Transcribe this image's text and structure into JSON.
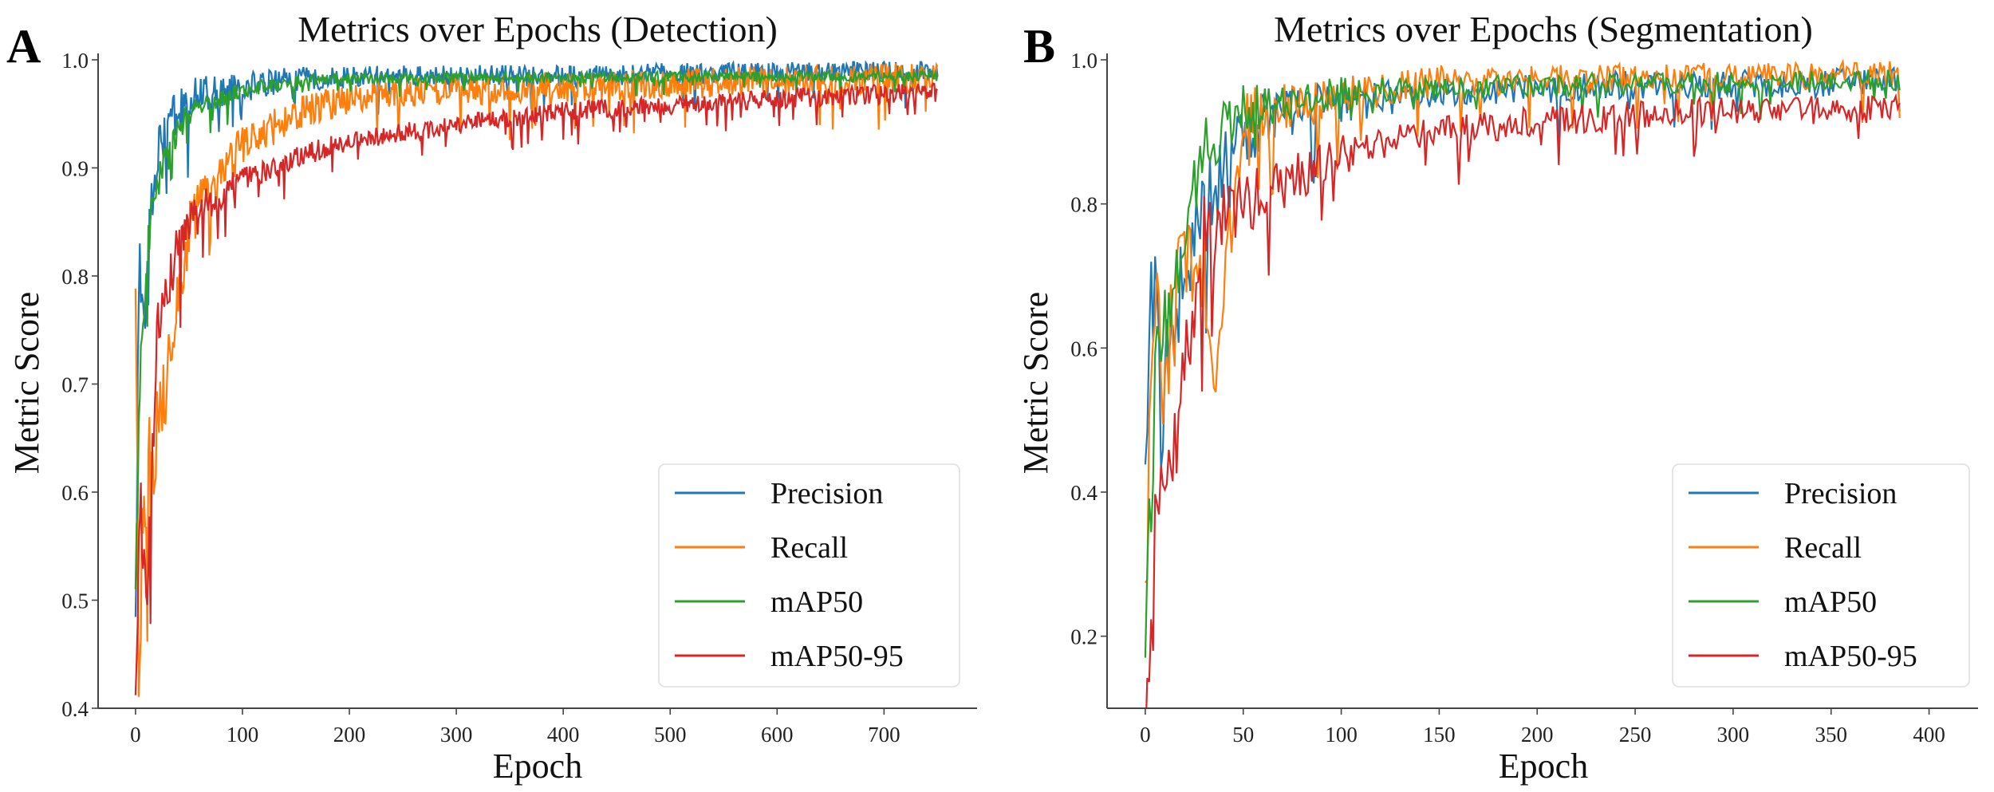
{
  "chart_data": [
    {
      "panel_label": "A",
      "type": "line",
      "title": "Metrics over Epochs (Detection)",
      "xlabel": "Epoch",
      "ylabel": "Metric Score",
      "xlim": [
        -35,
        787
      ],
      "ylim": [
        0.4,
        1.0
      ],
      "xticks": [
        0,
        100,
        200,
        300,
        400,
        500,
        600,
        700
      ],
      "xtick_labels": [
        "0",
        "100",
        "200",
        "300",
        "400",
        "500",
        "600",
        "700"
      ],
      "yticks": [
        0.4,
        0.5,
        0.6,
        0.7,
        0.8,
        0.9,
        1.0
      ],
      "ytick_labels": [
        "0.4",
        "0.5",
        "0.6",
        "0.7",
        "0.8",
        "0.9",
        "1.0"
      ],
      "grid": false,
      "legend_position": "lower-right",
      "x_max_epoch": 750,
      "series": [
        {
          "name": "Precision",
          "color": "#1f77b4",
          "noise": 0.01,
          "points": [
            [
              0,
              0.45
            ],
            [
              3,
              0.81
            ],
            [
              8,
              0.72
            ],
            [
              15,
              0.88
            ],
            [
              25,
              0.92
            ],
            [
              40,
              0.95
            ],
            [
              60,
              0.965
            ],
            [
              100,
              0.975
            ],
            [
              150,
              0.982
            ],
            [
              200,
              0.984
            ],
            [
              300,
              0.985
            ],
            [
              400,
              0.985
            ],
            [
              500,
              0.987
            ],
            [
              600,
              0.988
            ],
            [
              750,
              0.99
            ]
          ]
        },
        {
          "name": "Recall",
          "color": "#ff7f0e",
          "noise": 0.014,
          "points": [
            [
              0,
              0.75
            ],
            [
              3,
              0.45
            ],
            [
              8,
              0.6
            ],
            [
              15,
              0.62
            ],
            [
              30,
              0.72
            ],
            [
              50,
              0.85
            ],
            [
              100,
              0.92
            ],
            [
              150,
              0.95
            ],
            [
              200,
              0.965
            ],
            [
              300,
              0.972
            ],
            [
              500,
              0.978
            ],
            [
              750,
              0.984
            ]
          ]
        },
        {
          "name": "mAP50",
          "color": "#2ca02c",
          "noise": 0.005,
          "points": [
            [
              0,
              0.5
            ],
            [
              5,
              0.75
            ],
            [
              15,
              0.86
            ],
            [
              30,
              0.92
            ],
            [
              50,
              0.95
            ],
            [
              100,
              0.972
            ],
            [
              150,
              0.98
            ],
            [
              200,
              0.983
            ],
            [
              750,
              0.985
            ]
          ]
        },
        {
          "name": "mAP50-95",
          "color": "#d62728",
          "noise": 0.009,
          "points": [
            [
              0,
              0.4
            ],
            [
              5,
              0.6
            ],
            [
              10,
              0.47
            ],
            [
              20,
              0.75
            ],
            [
              40,
              0.83
            ],
            [
              60,
              0.86
            ],
            [
              100,
              0.89
            ],
            [
              150,
              0.91
            ],
            [
              200,
              0.925
            ],
            [
              300,
              0.94
            ],
            [
              400,
              0.952
            ],
            [
              500,
              0.958
            ],
            [
              600,
              0.964
            ],
            [
              750,
              0.97
            ]
          ]
        }
      ]
    },
    {
      "panel_label": "B",
      "type": "line",
      "title": "Metrics over Epochs (Segmentation)",
      "xlabel": "Epoch",
      "ylabel": "Metric Score",
      "xlim": [
        -19.5,
        425
      ],
      "ylim": [
        0.1,
        1.0
      ],
      "xticks": [
        0,
        50,
        100,
        150,
        200,
        250,
        300,
        350,
        400
      ],
      "xtick_labels": [
        "0",
        "50",
        "100",
        "150",
        "200",
        "250",
        "300",
        "350",
        "400"
      ],
      "yticks": [
        0.2,
        0.4,
        0.6,
        0.8,
        1.0
      ],
      "ytick_labels": [
        "0.2",
        "0.4",
        "0.6",
        "0.8",
        "1.0"
      ],
      "grid": false,
      "legend_position": "lower-right",
      "x_max_epoch": 385,
      "series": [
        {
          "name": "Precision",
          "color": "#1f77b4",
          "noise": 0.02,
          "points": [
            [
              0,
              0.45
            ],
            [
              3,
              0.74
            ],
            [
              8,
              0.5
            ],
            [
              15,
              0.65
            ],
            [
              25,
              0.75
            ],
            [
              35,
              0.82
            ],
            [
              50,
              0.9
            ],
            [
              75,
              0.93
            ],
            [
              100,
              0.94
            ],
            [
              150,
              0.955
            ],
            [
              200,
              0.96
            ],
            [
              250,
              0.965
            ],
            [
              300,
              0.965
            ],
            [
              385,
              0.97
            ]
          ]
        },
        {
          "name": "Recall",
          "color": "#ff7f0e",
          "noise": 0.02,
          "points": [
            [
              0,
              0.3
            ],
            [
              5,
              0.65
            ],
            [
              10,
              0.55
            ],
            [
              20,
              0.75
            ],
            [
              30,
              0.7
            ],
            [
              35,
              0.55
            ],
            [
              50,
              0.92
            ],
            [
              100,
              0.95
            ],
            [
              150,
              0.97
            ],
            [
              385,
              0.98
            ]
          ]
        },
        {
          "name": "mAP50",
          "color": "#2ca02c",
          "noise": 0.015,
          "points": [
            [
              0,
              0.2
            ],
            [
              5,
              0.55
            ],
            [
              15,
              0.7
            ],
            [
              30,
              0.88
            ],
            [
              50,
              0.93
            ],
            [
              100,
              0.955
            ],
            [
              200,
              0.965
            ],
            [
              385,
              0.972
            ]
          ]
        },
        {
          "name": "mAP50-95",
          "color": "#d62728",
          "noise": 0.02,
          "points": [
            [
              0,
              0.1
            ],
            [
              5,
              0.4
            ],
            [
              15,
              0.45
            ],
            [
              30,
              0.75
            ],
            [
              50,
              0.8
            ],
            [
              100,
              0.87
            ],
            [
              150,
              0.9
            ],
            [
              200,
              0.915
            ],
            [
              300,
              0.93
            ],
            [
              385,
              0.93
            ]
          ]
        }
      ]
    }
  ]
}
